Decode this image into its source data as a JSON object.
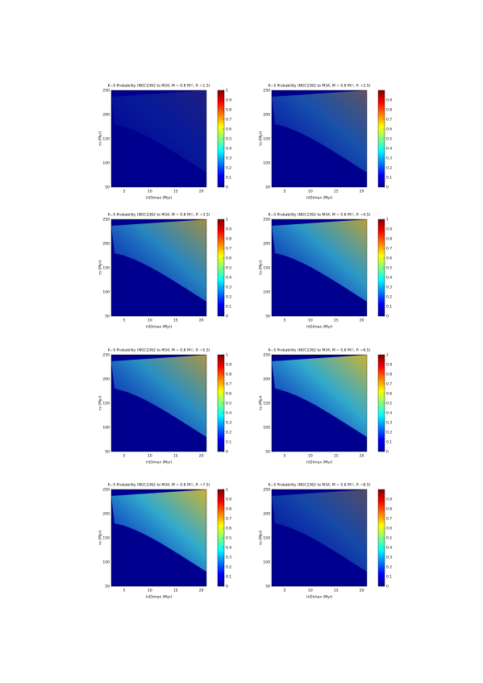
{
  "chart_data": [
    {
      "type": "contour",
      "title": "K−S Probability (NGC2362 to M34, M = 0.8 M☉, Pᵢ =1.5)",
      "xlabel": "(τD)max (Myr)",
      "ylabel": "τs (Myr)",
      "xlim": [
        2.5,
        21
      ],
      "xticks": [
        5,
        10,
        15,
        20
      ],
      "ylim": [
        50,
        250
      ],
      "yticks": [
        50,
        100,
        150,
        200,
        250
      ],
      "clim": [
        0,
        1
      ],
      "cticks": [
        0,
        0.1,
        0.2,
        0.3,
        0.4,
        0.5,
        0.6,
        0.7,
        0.8,
        0.9,
        1
      ],
      "colormap": "jet"
    },
    {
      "type": "contour",
      "title": "K−S Probability (NGC2362 to M34, M = 0.8 M☉, Pᵢ =2.5)",
      "xlabel": "(τD)max (Myr)",
      "ylabel": "τs (Myr)",
      "xlim": [
        2.5,
        21
      ],
      "xticks": [
        5,
        10,
        15,
        20
      ],
      "ylim": [
        50,
        250
      ],
      "yticks": [
        50,
        100,
        150,
        200,
        250
      ],
      "clim": [
        0,
        1
      ],
      "cticks": [
        0,
        0.1,
        0.2,
        0.3,
        0.4,
        0.5,
        0.6,
        0.7,
        0.8,
        0.9
      ],
      "colormap": "jet"
    },
    {
      "type": "contour",
      "title": "K−S Probability (NGC2362 to M34, M = 0.8 M☉, Pᵢ =3.5)",
      "xlabel": "(τD)max (Myr)",
      "ylabel": "τs (Myr)",
      "xlim": [
        2.5,
        21
      ],
      "xticks": [
        5,
        10,
        15,
        20
      ],
      "ylim": [
        50,
        250
      ],
      "yticks": [
        50,
        100,
        150,
        200,
        250
      ],
      "clim": [
        0,
        1
      ],
      "cticks": [
        0,
        0.1,
        0.2,
        0.3,
        0.4,
        0.5,
        0.6,
        0.7,
        0.8,
        0.9,
        1
      ],
      "colormap": "jet"
    },
    {
      "type": "contour",
      "title": "K−S Probability (NGC2362 to M34, M = 0.8 M☉, Pᵢ =4.5)",
      "xlabel": "(τD)max (Myr)",
      "ylabel": "τs (Myr)",
      "xlim": [
        2.5,
        21
      ],
      "xticks": [
        5,
        10,
        15,
        20
      ],
      "ylim": [
        50,
        250
      ],
      "yticks": [
        50,
        100,
        150,
        200,
        250
      ],
      "clim": [
        0,
        1
      ],
      "cticks": [
        0,
        0.1,
        0.2,
        0.3,
        0.4,
        0.5,
        0.6,
        0.7,
        0.8,
        0.9,
        1
      ],
      "colormap": "jet"
    },
    {
      "type": "contour",
      "title": "K−S Probability (NGC2362 to M34, M = 0.8 M☉, Pᵢ =5.5)",
      "xlabel": "(τD)max (Myr)",
      "ylabel": "τs (Myr)",
      "xlim": [
        2.5,
        21
      ],
      "xticks": [
        5,
        10,
        15,
        20
      ],
      "ylim": [
        50,
        250
      ],
      "yticks": [
        50,
        100,
        150,
        200,
        250
      ],
      "clim": [
        0,
        1
      ],
      "cticks": [
        0,
        0.1,
        0.2,
        0.3,
        0.4,
        0.5,
        0.6,
        0.7,
        0.8,
        0.9,
        1
      ],
      "colormap": "jet"
    },
    {
      "type": "contour",
      "title": "K−S Probability (NGC2362 to M34, M = 0.8 M☉, Pᵢ =6.5)",
      "xlabel": "(τD)max (Myr)",
      "ylabel": "τs (Myr)",
      "xlim": [
        2.5,
        21
      ],
      "xticks": [
        5,
        10,
        15,
        20
      ],
      "ylim": [
        50,
        250
      ],
      "yticks": [
        50,
        100,
        150,
        200,
        250
      ],
      "clim": [
        0,
        1
      ],
      "cticks": [
        0,
        0.1,
        0.2,
        0.3,
        0.4,
        0.5,
        0.6,
        0.7,
        0.8,
        0.9,
        1
      ],
      "colormap": "jet"
    },
    {
      "type": "contour",
      "title": "K−S Probability (NGC2362 to M34, M = 0.8 M☉, Pᵢ =7.5)",
      "xlabel": "(τD)max (Myr)",
      "ylabel": "τs (Myr)",
      "xlim": [
        2.5,
        21
      ],
      "xticks": [
        5,
        10,
        15,
        20
      ],
      "ylim": [
        50,
        250
      ],
      "yticks": [
        50,
        100,
        150,
        200,
        250
      ],
      "clim": [
        0,
        1
      ],
      "cticks": [
        0,
        0.1,
        0.2,
        0.3,
        0.4,
        0.5,
        0.6,
        0.7,
        0.8,
        0.9,
        1
      ],
      "colormap": "jet"
    },
    {
      "type": "contour",
      "title": "K−S Probability (NGC2362 to M34, M = 0.8 M☉, Pᵢ =8.5)",
      "xlabel": "(τD)max (Myr)",
      "ylabel": "τs (Myr)",
      "xlim": [
        2.5,
        21
      ],
      "xticks": [
        5,
        10,
        15,
        20
      ],
      "ylim": [
        50,
        250
      ],
      "yticks": [
        50,
        100,
        150,
        200,
        250
      ],
      "clim": [
        0,
        1
      ],
      "cticks": [
        0,
        0.1,
        0.2,
        0.3,
        0.4,
        0.5,
        0.6,
        0.7,
        0.8,
        0.9
      ],
      "colormap": "jet"
    }
  ]
}
